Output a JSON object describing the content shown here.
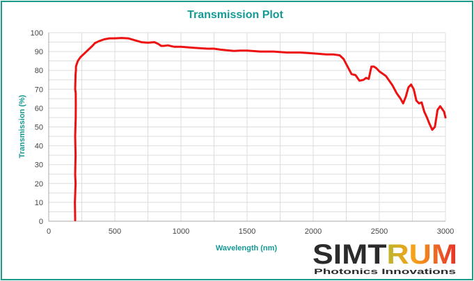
{
  "colors": {
    "frame": "#1a9a8a",
    "title": "#149a95",
    "series": "#ee1111",
    "grid": "#dddddd",
    "axis": "#aaaaaa",
    "logo_dark": "#2b2b2b"
  },
  "chart_data": {
    "type": "line",
    "title": "Transmission Plot",
    "xlabel": "Wavelength (nm)",
    "ylabel": "Transmission  (%)",
    "xlim": [
      0,
      3000
    ],
    "ylim": [
      0,
      100
    ],
    "xticks": [
      0,
      500,
      1000,
      1500,
      2000,
      2500,
      3000
    ],
    "yticks": [
      0,
      10,
      20,
      30,
      40,
      50,
      60,
      70,
      80,
      90,
      100
    ],
    "grid": true,
    "legend": "none",
    "series": [
      {
        "color": "#ee1111",
        "x": [
          200,
          198,
          203,
          200,
          203,
          200,
          204,
          205,
          204,
          200,
          203,
          206,
          206,
          210,
          220,
          240,
          270,
          300,
          330,
          350,
          380,
          420,
          460,
          500,
          550,
          600,
          650,
          700,
          750,
          800,
          830,
          850,
          870,
          900,
          950,
          1000,
          1100,
          1200,
          1250,
          1300,
          1400,
          1450,
          1500,
          1600,
          1700,
          1800,
          1850,
          1900,
          2000,
          2100,
          2150,
          2200,
          2230,
          2260,
          2290,
          2320,
          2350,
          2380,
          2400,
          2420,
          2440,
          2460,
          2480,
          2500,
          2550,
          2600,
          2630,
          2660,
          2680,
          2700,
          2720,
          2740,
          2760,
          2780,
          2800,
          2820,
          2840,
          2860,
          2880,
          2900,
          2920,
          2940,
          2960,
          2975,
          2990,
          3000
        ],
        "y": [
          0.5,
          10,
          20,
          25,
          35,
          45,
          55,
          62,
          68,
          70,
          78,
          80,
          82,
          83,
          85,
          87,
          89,
          91,
          93,
          94.5,
          95.5,
          96.5,
          97,
          97,
          97.2,
          97,
          96,
          95,
          94.7,
          95,
          94,
          93,
          93,
          93.3,
          92.5,
          92.5,
          92,
          91.5,
          91.5,
          91,
          90.3,
          90.5,
          90.5,
          90,
          90,
          89.5,
          89.5,
          89.5,
          89,
          88.5,
          88.5,
          88,
          86,
          82,
          78,
          77.5,
          74.5,
          75,
          76,
          75.5,
          82,
          82,
          81,
          79.5,
          77,
          72,
          68,
          65,
          62.5,
          66,
          71,
          72.5,
          70,
          64,
          62.5,
          63,
          58,
          55,
          51.5,
          48.5,
          50,
          59,
          61,
          59.5,
          58,
          55
        ]
      }
    ]
  },
  "logo": {
    "brand_left": "SIMT",
    "brand_right": "RUM",
    "tagline": "Photonics Innovations"
  }
}
